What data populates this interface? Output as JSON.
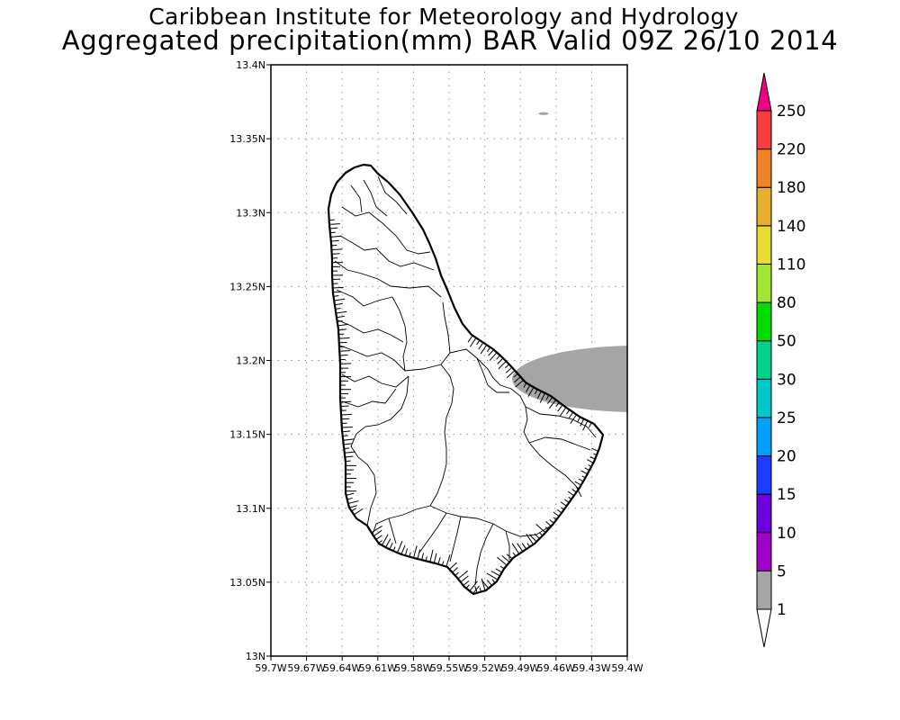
{
  "header": {
    "title_line1": "Caribbean Institute for Meteorology and Hydrology",
    "title_line2": "Aggregated precipitation(mm) BAR Valid 09Z 26/10 2014"
  },
  "map": {
    "region": "Barbados",
    "lon_range": [
      -59.7,
      -59.4
    ],
    "lat_range": [
      13.0,
      13.4
    ],
    "grid": true,
    "x_tick_values": [
      -59.7,
      -59.67,
      -59.64,
      -59.61,
      -59.58,
      -59.55,
      -59.52,
      -59.49,
      -59.46,
      -59.43,
      -59.4
    ],
    "x_tick_labels": [
      "59.7W",
      "59.67W",
      "59.64W",
      "59.61W",
      "59.58W",
      "59.55W",
      "59.52W",
      "59.49W",
      "59.46W",
      "59.43W",
      "59.4W"
    ],
    "y_tick_values": [
      13.0,
      13.05,
      13.1,
      13.15,
      13.2,
      13.25,
      13.3,
      13.35,
      13.4
    ],
    "y_tick_labels": [
      "13N",
      "13.05N",
      "13.1N",
      "13.15N",
      "13.2N",
      "13.25N",
      "13.3N",
      "13.35N",
      "13.4N"
    ],
    "precip_areas": [
      {
        "range_mm": "1-5",
        "color": "#a5a5a5",
        "lon_min": -59.497,
        "lon_max": -59.4,
        "lat_min": 13.165,
        "lat_max": 13.21
      },
      {
        "range_mm": "1-5",
        "color": "#a5a5a5",
        "lon_min": -59.474,
        "lon_max": -59.467,
        "lat_min": 13.366,
        "lat_max": 13.368
      }
    ]
  },
  "colorbar": {
    "levels": [
      "1",
      "5",
      "10",
      "15",
      "20",
      "25",
      "30",
      "50",
      "80",
      "110",
      "140",
      "180",
      "220",
      "250"
    ],
    "colors": [
      "#a5a5a5",
      "#a000c8",
      "#6e00dc",
      "#1e3cff",
      "#00a0ff",
      "#00c8c8",
      "#00d28c",
      "#00dc00",
      "#a0e632",
      "#e6dc32",
      "#e6af2d",
      "#f08228",
      "#fa3c3c",
      "#f00082"
    ],
    "under_color": "#ffffff",
    "over_color": "#f00082"
  }
}
